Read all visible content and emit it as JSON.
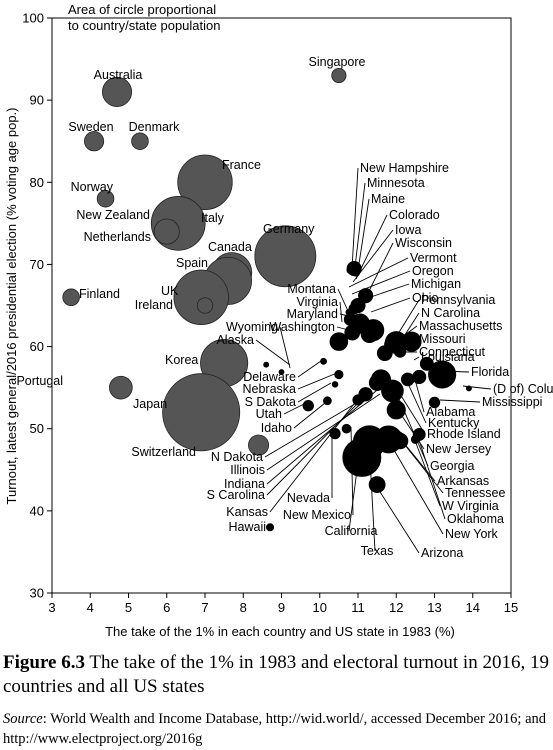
{
  "chart_data": {
    "type": "scatter",
    "title": "",
    "annotation": [
      "Area of circle proportional",
      "to country/state population"
    ],
    "xlabel": "The take of the 1% in each country and US state in 1983 (%)",
    "ylabel": "Turnout, latest general/2016 presidential election (% voting age pop.)",
    "xlim": [
      3,
      15
    ],
    "ylim": [
      30,
      100
    ],
    "xticks": [
      3,
      4,
      5,
      6,
      7,
      8,
      9,
      10,
      11,
      12,
      13,
      14,
      15
    ],
    "yticks": [
      30,
      40,
      50,
      60,
      70,
      80,
      90,
      100
    ],
    "grid": false,
    "series": [
      {
        "group": "countries",
        "color": "#555555",
        "points": [
          {
            "label": "Singapore",
            "x": 10.5,
            "y": 93,
            "size": 5.5
          },
          {
            "label": "Australia",
            "x": 4.7,
            "y": 91,
            "size": 23
          },
          {
            "label": "Sweden",
            "x": 4.1,
            "y": 85,
            "size": 10
          },
          {
            "label": "Denmark",
            "x": 5.3,
            "y": 85,
            "size": 7.5
          },
          {
            "label": "France",
            "x": 7.0,
            "y": 80,
            "size": 80
          },
          {
            "label": "Norway",
            "x": 4.4,
            "y": 78,
            "size": 7.5
          },
          {
            "label": "New Zealand",
            "x": 6.0,
            "y": 76,
            "size": 6
          },
          {
            "label": "Italy",
            "x": 6.3,
            "y": 75,
            "size": 78
          },
          {
            "label": "Netherlands",
            "x": 6.0,
            "y": 74,
            "size": 17
          },
          {
            "label": "Germany",
            "x": 9.1,
            "y": 71,
            "size": 100
          },
          {
            "label": "Canada",
            "x": 7.7,
            "y": 69,
            "size": 43
          },
          {
            "label": "Spain",
            "x": 7.6,
            "y": 68,
            "size": 60
          },
          {
            "label": "Finland",
            "x": 3.5,
            "y": 66,
            "size": 7.5
          },
          {
            "label": "UK",
            "x": 6.9,
            "y": 66,
            "size": 80
          },
          {
            "label": "Ireland",
            "x": 7.0,
            "y": 65,
            "size": 6.5
          },
          {
            "label": "Korea",
            "x": 7.5,
            "y": 58,
            "size": 60
          },
          {
            "label": "Portugal",
            "x": 4.8,
            "y": 55,
            "size": 14
          },
          {
            "label": "Japan",
            "x": 6.9,
            "y": 52,
            "size": 160
          },
          {
            "label": "Switzerland",
            "x": 8.4,
            "y": 48,
            "size": 11
          }
        ]
      },
      {
        "group": "us_states",
        "color": "#000000",
        "points": [
          {
            "label": "New Hampshire",
            "x": 10.8,
            "y": 69.3,
            "size": 1.3
          },
          {
            "label": "Minnesota",
            "x": 10.9,
            "y": 69.5,
            "size": 5.5
          },
          {
            "label": "Maine",
            "x": 10.95,
            "y": 69.0,
            "size": 1.4
          },
          {
            "label": "Colorado",
            "x": 11.0,
            "y": 65.0,
            "size": 5.5
          },
          {
            "label": "Iowa",
            "x": 10.9,
            "y": 64.6,
            "size": 3
          },
          {
            "label": "Wisconsin",
            "x": 11.2,
            "y": 66.2,
            "size": 5.5
          },
          {
            "label": "Vermont",
            "x": 10.75,
            "y": 64.2,
            "size": 0.7
          },
          {
            "label": "Oregon",
            "x": 10.8,
            "y": 63.3,
            "size": 4
          },
          {
            "label": "Michigan",
            "x": 11.05,
            "y": 62.8,
            "size": 10
          },
          {
            "label": "Ohio",
            "x": 11.4,
            "y": 62.0,
            "size": 12
          },
          {
            "label": "Montana",
            "x": 10.4,
            "y": 60.2,
            "size": 1.1
          },
          {
            "label": "Virginia",
            "x": 10.5,
            "y": 60.6,
            "size": 8.5
          },
          {
            "label": "Maryland",
            "x": 10.85,
            "y": 61.7,
            "size": 6
          },
          {
            "label": "Washington",
            "x": 11.3,
            "y": 61.5,
            "size": 7.5
          },
          {
            "label": "Pennsylvania",
            "x": 12.0,
            "y": 60.5,
            "size": 13
          },
          {
            "label": "N Carolina",
            "x": 12.4,
            "y": 60.6,
            "size": 10
          },
          {
            "label": "Massachusetts",
            "x": 11.9,
            "y": 60.2,
            "size": 6.8
          },
          {
            "label": "Missouri",
            "x": 11.7,
            "y": 59.2,
            "size": 6
          },
          {
            "label": "Connecticut",
            "x": 12.1,
            "y": 59.4,
            "size": 3.6
          },
          {
            "label": "Louisiana",
            "x": 12.8,
            "y": 57.9,
            "size": 4.6
          },
          {
            "label": "Florida",
            "x": 13.2,
            "y": 56.6,
            "size": 20
          },
          {
            "label": "(D of) Columbia",
            "x": 13.9,
            "y": 54.9,
            "size": 0.7
          },
          {
            "label": "Mississippi",
            "x": 13.0,
            "y": 53.2,
            "size": 3
          },
          {
            "label": "Alabama",
            "x": 12.6,
            "y": 56.3,
            "size": 4.8
          },
          {
            "label": "Kentucky",
            "x": 12.3,
            "y": 56.0,
            "size": 4.4
          },
          {
            "label": "Rhode Island",
            "x": 12.0,
            "y": 55.4,
            "size": 1
          },
          {
            "label": "New Jersey",
            "x": 12.0,
            "y": 52.3,
            "size": 9
          },
          {
            "label": "Georgia",
            "x": 11.6,
            "y": 56.0,
            "size": 10
          },
          {
            "label": "Arkansas",
            "x": 12.05,
            "y": 49.0,
            "size": 3
          },
          {
            "label": "Tennessee",
            "x": 12.1,
            "y": 48.5,
            "size": 6.6
          },
          {
            "label": "W Virginia",
            "x": 12.5,
            "y": 48.7,
            "size": 1.8
          },
          {
            "label": "Oklahoma",
            "x": 12.6,
            "y": 49.3,
            "size": 3.9
          },
          {
            "label": "New York",
            "x": 11.8,
            "y": 48.7,
            "size": 19.7
          },
          {
            "label": "Arizona",
            "x": 11.5,
            "y": 43.2,
            "size": 6.9
          },
          {
            "label": "Texas",
            "x": 11.3,
            "y": 48.4,
            "size": 28
          },
          {
            "label": "California",
            "x": 11.1,
            "y": 46.5,
            "size": 39
          },
          {
            "label": "New Mexico",
            "x": 10.7,
            "y": 50.0,
            "size": 2.1
          },
          {
            "label": "Nevada",
            "x": 10.4,
            "y": 49.4,
            "size": 2.9
          },
          {
            "label": "Hawaii",
            "x": 8.7,
            "y": 38.0,
            "size": 1.4
          },
          {
            "label": "Kansas",
            "x": 11.0,
            "y": 53.5,
            "size": 2.9
          },
          {
            "label": "S Carolina",
            "x": 11.2,
            "y": 54.2,
            "size": 4.9
          },
          {
            "label": "Indiana",
            "x": 11.5,
            "y": 55.6,
            "size": 6.6
          },
          {
            "label": "Illinois",
            "x": 11.9,
            "y": 54.6,
            "size": 12.8
          },
          {
            "label": "N Dakota",
            "x": 11.1,
            "y": 53.8,
            "size": 0.8
          },
          {
            "label": "Idaho",
            "x": 10.2,
            "y": 53.4,
            "size": 1.7
          },
          {
            "label": "Utah",
            "x": 9.7,
            "y": 52.8,
            "size": 3
          },
          {
            "label": "S Dakota",
            "x": 10.4,
            "y": 55.4,
            "size": 0.9
          },
          {
            "label": "Nebraska",
            "x": 10.5,
            "y": 56.6,
            "size": 1.9
          },
          {
            "label": "Delaware",
            "x": 10.1,
            "y": 58.2,
            "size": 1
          },
          {
            "label": "Alaska",
            "x": 8.6,
            "y": 57.8,
            "size": 0.7
          },
          {
            "label": "Wyoming",
            "x": 9.0,
            "y": 56.9,
            "size": 0.6
          }
        ]
      }
    ]
  },
  "caption": {
    "figure_number": "Figure 6.3",
    "text": " The take of the 1% in 1983 and electoral turnout in 2016, 19 countries and all US states"
  },
  "source": {
    "label": "Source",
    "text": ": World Wealth and Income Database, http://wid.world/, accessed December 2016; and http://www.electproject.org/2016g"
  }
}
